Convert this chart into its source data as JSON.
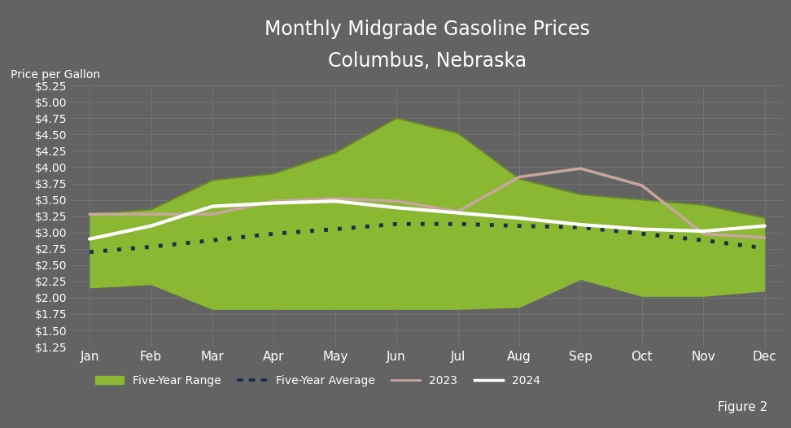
{
  "title_line1": "Monthly Midgrade Gasoline Prices",
  "title_line2": "Columbus, Nebraska",
  "ylabel": "Price per Gallon",
  "figure_label": "Figure 2",
  "months": [
    "Jan",
    "Feb",
    "Mar",
    "Apr",
    "May",
    "Jun",
    "Jul",
    "Aug",
    "Sep",
    "Oct",
    "Nov",
    "Dec"
  ],
  "five_year_low": [
    2.15,
    2.2,
    1.82,
    1.82,
    1.82,
    1.82,
    1.82,
    1.85,
    2.28,
    2.02,
    2.02,
    2.1
  ],
  "five_year_high": [
    3.28,
    3.35,
    3.8,
    3.9,
    4.22,
    4.75,
    4.52,
    3.82,
    3.58,
    3.5,
    3.42,
    3.22
  ],
  "five_year_avg": [
    2.7,
    2.78,
    2.88,
    2.98,
    3.05,
    3.13,
    3.13,
    3.1,
    3.08,
    2.98,
    2.88,
    2.76
  ],
  "price_2023": [
    3.28,
    3.28,
    3.28,
    3.48,
    3.52,
    3.48,
    3.32,
    3.85,
    3.98,
    3.72,
    2.98,
    2.92
  ],
  "price_2024": [
    2.9,
    3.1,
    3.4,
    3.45,
    3.48,
    3.38,
    3.3,
    3.22,
    3.12,
    3.05,
    3.02,
    3.1
  ],
  "ylim": [
    1.25,
    5.25
  ],
  "yticks": [
    1.25,
    1.5,
    1.75,
    2.0,
    2.25,
    2.5,
    2.75,
    3.0,
    3.25,
    3.5,
    3.75,
    4.0,
    4.25,
    4.5,
    4.75,
    5.0,
    5.25
  ],
  "bg_color": "#636363",
  "plot_bg_color": "#636363",
  "green_fill": "#8ab832",
  "green_edge": "#6a9020",
  "pink_line": "#c9a5a0",
  "white_line": "#ffffff",
  "dotted_line": "#1c2f4a",
  "grid_color": "#7a7a7a",
  "text_color": "#ffffff"
}
